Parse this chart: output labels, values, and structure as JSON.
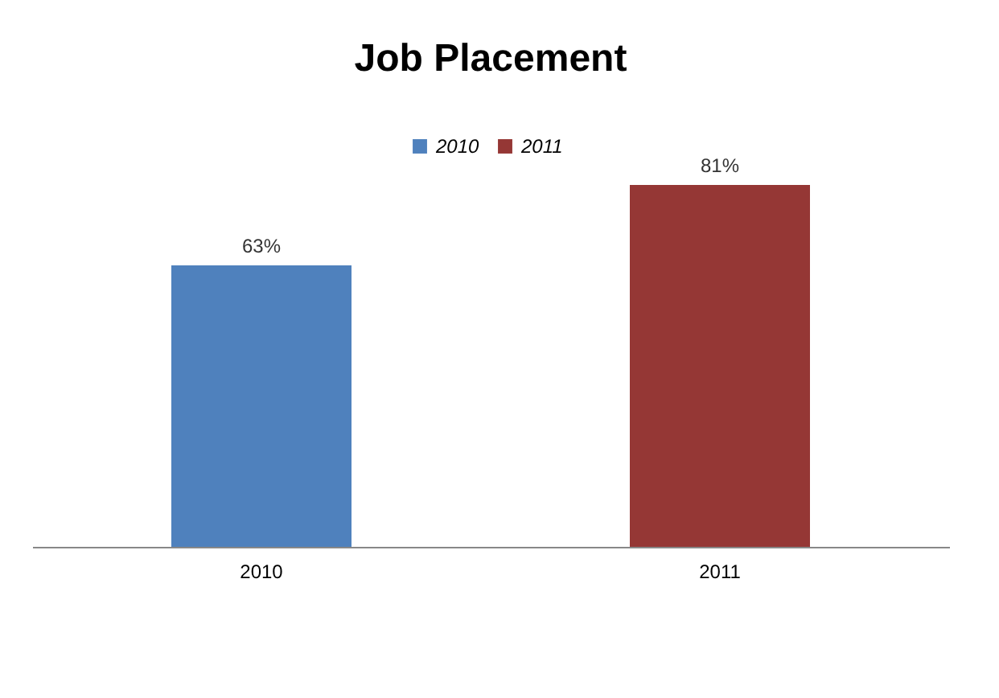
{
  "chart_data": {
    "type": "bar",
    "title": "Job Placement",
    "categories": [
      "2010",
      "2011"
    ],
    "series": [
      {
        "name": "2010",
        "color": "#4f81bd",
        "values": [
          63,
          null
        ],
        "value_labels": [
          "63%",
          null
        ]
      },
      {
        "name": "2011",
        "color": "#953735",
        "values": [
          null,
          81
        ],
        "value_labels": [
          null,
          "81%"
        ]
      }
    ],
    "legend": "top"
  }
}
